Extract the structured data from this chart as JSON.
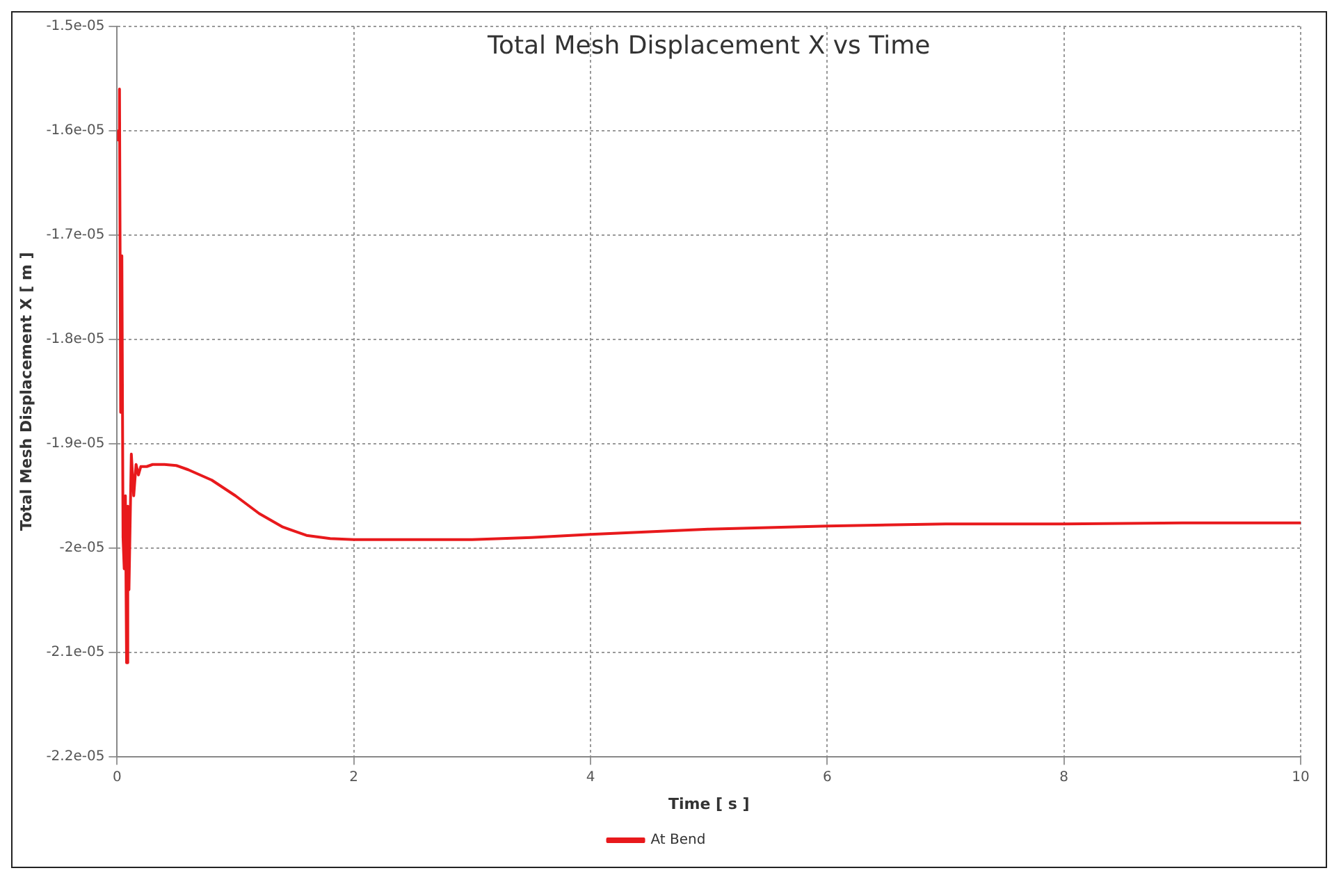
{
  "chart_data": {
    "type": "line",
    "title": "Total Mesh Displacement X vs Time",
    "xlabel": "Time [ s ]",
    "ylabel": "Total Mesh Displacement X [ m ]",
    "xlim": [
      0,
      10
    ],
    "xticks": [
      0,
      2,
      4,
      6,
      8,
      10
    ],
    "ylim": [
      -2.2e-05,
      -1.5e-05
    ],
    "yticks": [
      {
        "value": -2.2e-05,
        "label": "-2.2e-05"
      },
      {
        "value": -2.1e-05,
        "label": "-2.1e-05"
      },
      {
        "value": -2e-05,
        "label": "-2e-05"
      },
      {
        "value": -1.9e-05,
        "label": "-1.9e-05"
      },
      {
        "value": -1.8e-05,
        "label": "-1.8e-05"
      },
      {
        "value": -1.7e-05,
        "label": "-1.7e-05"
      },
      {
        "value": -1.6e-05,
        "label": "-1.6e-05"
      },
      {
        "value": -1.5e-05,
        "label": "-1.5e-05"
      }
    ],
    "grid": true,
    "legend": "bottom",
    "marker": "none",
    "line_style": "solid",
    "series": [
      {
        "name": "At Bend",
        "color": "#e8191c",
        "x": [
          0,
          0.01,
          0.02,
          0.03,
          0.04,
          0.05,
          0.06,
          0.07,
          0.08,
          0.09,
          0.1,
          0.12,
          0.14,
          0.16,
          0.18,
          0.2,
          0.25,
          0.3,
          0.4,
          0.5,
          0.6,
          0.8,
          1.0,
          1.2,
          1.4,
          1.6,
          1.8,
          2,
          2.5,
          3,
          3.5,
          4,
          5,
          6,
          7,
          8,
          9,
          10
        ],
        "values": [
          -1.61e-05,
          -1.6e-05,
          -1.56e-05,
          -1.87e-05,
          -1.72e-05,
          -1.99e-05,
          -2.02e-05,
          -1.95e-05,
          -2.11e-05,
          -1.96e-05,
          -2.04e-05,
          -1.91e-05,
          -1.95e-05,
          -1.92e-05,
          -1.93e-05,
          -1.922e-05,
          -1.922e-05,
          -1.92e-05,
          -1.92e-05,
          -1.921e-05,
          -1.925e-05,
          -1.935e-05,
          -1.95e-05,
          -1.967e-05,
          -1.98e-05,
          -1.988e-05,
          -1.991e-05,
          -1.992e-05,
          -1.992e-05,
          -1.992e-05,
          -1.99e-05,
          -1.987e-05,
          -1.982e-05,
          -1.979e-05,
          -1.977e-05,
          -1.977e-05,
          -1.976e-05,
          -1.976e-05
        ]
      }
    ]
  }
}
